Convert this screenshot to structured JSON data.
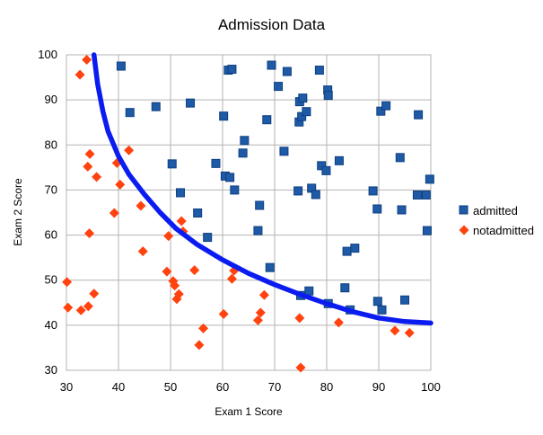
{
  "chart_data": {
    "type": "scatter",
    "title": "Admission Data",
    "xlabel": "Exam 1 Score",
    "ylabel": "Exam 2 Score",
    "xlim": [
      30,
      100
    ],
    "ylim": [
      30,
      100
    ],
    "xticks": [
      30,
      40,
      50,
      60,
      70,
      80,
      90,
      100
    ],
    "yticks": [
      30,
      40,
      50,
      60,
      70,
      80,
      90,
      100
    ],
    "grid": true,
    "legend_position": "right",
    "series": [
      {
        "name": "admitted",
        "color": "#1f5aa6",
        "marker": "square",
        "points": [
          [
            40.5,
            97.5
          ],
          [
            42.2,
            87.2
          ],
          [
            47.2,
            88.5
          ],
          [
            50.3,
            75.8
          ],
          [
            51.9,
            69.4
          ],
          [
            53.8,
            89.3
          ],
          [
            55.2,
            64.9
          ],
          [
            57.1,
            59.5
          ],
          [
            58.7,
            75.9
          ],
          [
            60.2,
            86.4
          ],
          [
            60.5,
            73.1
          ],
          [
            61.1,
            96.6
          ],
          [
            61.4,
            72.8
          ],
          [
            61.8,
            96.8
          ],
          [
            62.3,
            70.0
          ],
          [
            63.9,
            78.2
          ],
          [
            64.2,
            81.0
          ],
          [
            66.8,
            61.0
          ],
          [
            67.1,
            66.6
          ],
          [
            68.5,
            85.6
          ],
          [
            69.1,
            52.8
          ],
          [
            69.4,
            97.7
          ],
          [
            70.7,
            93.0
          ],
          [
            71.8,
            78.6
          ],
          [
            72.4,
            96.3
          ],
          [
            74.5,
            69.8
          ],
          [
            74.7,
            85.1
          ],
          [
            74.8,
            89.6
          ],
          [
            75.0,
            46.6
          ],
          [
            75.2,
            86.3
          ],
          [
            75.4,
            90.4
          ],
          [
            76.1,
            87.4
          ],
          [
            76.6,
            47.6
          ],
          [
            77.1,
            70.4
          ],
          [
            77.9,
            69.0
          ],
          [
            78.6,
            96.6
          ],
          [
            79.0,
            75.4
          ],
          [
            79.9,
            74.3
          ],
          [
            80.2,
            92.2
          ],
          [
            80.3,
            91.0
          ],
          [
            80.3,
            44.8
          ],
          [
            82.4,
            76.5
          ],
          [
            83.5,
            48.3
          ],
          [
            83.9,
            56.4
          ],
          [
            84.5,
            43.4
          ],
          [
            85.4,
            57.1
          ],
          [
            88.9,
            69.8
          ],
          [
            89.7,
            65.8
          ],
          [
            89.8,
            45.3
          ],
          [
            90.4,
            87.5
          ],
          [
            90.6,
            43.4
          ],
          [
            91.4,
            88.7
          ],
          [
            94.1,
            77.2
          ],
          [
            94.4,
            65.6
          ],
          [
            95.0,
            45.6
          ],
          [
            97.4,
            68.9
          ],
          [
            97.6,
            86.7
          ],
          [
            99.1,
            68.9
          ],
          [
            99.3,
            61.0
          ],
          [
            99.8,
            72.4
          ]
        ]
      },
      {
        "name": "notadmitted",
        "color": "#ff420e",
        "marker": "diamond",
        "points": [
          [
            30.1,
            49.6
          ],
          [
            30.3,
            43.9
          ],
          [
            32.6,
            95.6
          ],
          [
            32.8,
            43.3
          ],
          [
            33.9,
            98.9
          ],
          [
            34.1,
            75.2
          ],
          [
            34.2,
            44.2
          ],
          [
            34.4,
            60.4
          ],
          [
            34.5,
            78.0
          ],
          [
            35.3,
            47.0
          ],
          [
            35.8,
            72.9
          ],
          [
            39.2,
            64.9
          ],
          [
            39.7,
            76.0
          ],
          [
            40.3,
            71.2
          ],
          [
            42.0,
            78.8
          ],
          [
            44.3,
            66.5
          ],
          [
            44.7,
            56.4
          ],
          [
            49.3,
            51.9
          ],
          [
            49.6,
            59.8
          ],
          [
            50.5,
            49.8
          ],
          [
            50.8,
            48.8
          ],
          [
            51.2,
            45.8
          ],
          [
            51.6,
            46.9
          ],
          [
            52.1,
            63.1
          ],
          [
            52.4,
            60.8
          ],
          [
            54.6,
            52.2
          ],
          [
            55.5,
            35.6
          ],
          [
            56.3,
            39.3
          ],
          [
            60.2,
            42.5
          ],
          [
            61.8,
            50.3
          ],
          [
            62.2,
            52.1
          ],
          [
            66.8,
            41.1
          ],
          [
            67.3,
            42.8
          ],
          [
            68.0,
            46.7
          ],
          [
            74.8,
            41.6
          ],
          [
            75.0,
            30.6
          ],
          [
            82.3,
            40.6
          ],
          [
            93.1,
            38.8
          ],
          [
            95.9,
            38.3
          ]
        ]
      }
    ],
    "decision_boundary": {
      "color": "#0a1cf0",
      "points": [
        [
          35.3,
          100
        ],
        [
          36.0,
          93.5
        ],
        [
          37.0,
          87.5
        ],
        [
          38.0,
          83.0
        ],
        [
          40.0,
          77.5
        ],
        [
          42.0,
          73.5
        ],
        [
          45.0,
          69.0
        ],
        [
          48.0,
          65.0
        ],
        [
          51.0,
          61.5
        ],
        [
          55.0,
          58.0
        ],
        [
          60.0,
          54.5
        ],
        [
          65.0,
          51.5
        ],
        [
          70.0,
          49.0
        ],
        [
          75.0,
          46.8
        ],
        [
          80.0,
          44.8
        ],
        [
          85.0,
          43.0
        ],
        [
          90.0,
          41.6
        ],
        [
          95.0,
          40.8
        ],
        [
          100.0,
          40.5
        ]
      ]
    }
  }
}
